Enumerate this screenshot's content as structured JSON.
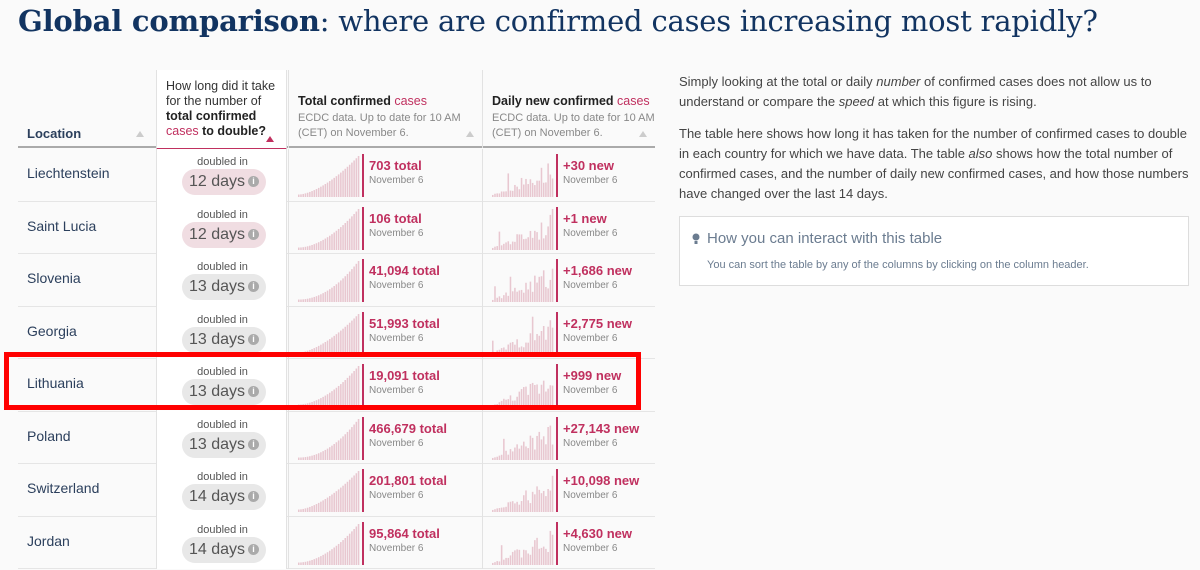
{
  "title": {
    "bold": "Global comparison",
    "rest": ": where are confirmed cases increasing most rapidly?"
  },
  "header": {
    "location": "Location",
    "doubling": {
      "part1": "How long did it take for the number of ",
      "bold": "total confirmed",
      "pink": "cases",
      "part2": " to double?"
    },
    "total": {
      "label": "Total confirmed ",
      "pink": "cases",
      "sub": "ECDC data. Up to date for 10 AM (CET) on November 6."
    },
    "daily": {
      "label": "Daily new confirmed ",
      "pink": "cases",
      "sub": "ECDC data. Up to date for 10 AM (CET) on November 6."
    }
  },
  "rows": [
    {
      "location": "Liechtenstein",
      "doubled_label": "doubled in",
      "days": "12 days",
      "hot": true,
      "total": "703 total",
      "total_date": "November 6",
      "new": "+30 new",
      "new_date": "November 6"
    },
    {
      "location": "Saint Lucia",
      "doubled_label": "doubled in",
      "days": "12 days",
      "hot": true,
      "total": "106 total",
      "total_date": "November 6",
      "new": "+1 new",
      "new_date": "November 6"
    },
    {
      "location": "Slovenia",
      "doubled_label": "doubled in",
      "days": "13 days",
      "hot": false,
      "total": "41,094 total",
      "total_date": "November 6",
      "new": "+1,686 new",
      "new_date": "November 6"
    },
    {
      "location": "Georgia",
      "doubled_label": "doubled in",
      "days": "13 days",
      "hot": false,
      "total": "51,993 total",
      "total_date": "November 6",
      "new": "+2,775 new",
      "new_date": "November 6"
    },
    {
      "location": "Lithuania",
      "doubled_label": "doubled in",
      "days": "13 days",
      "hot": false,
      "total": "19,091 total",
      "total_date": "November 6",
      "new": "+999 new",
      "new_date": "November 6"
    },
    {
      "location": "Poland",
      "doubled_label": "doubled in",
      "days": "13 days",
      "hot": false,
      "total": "466,679 total",
      "total_date": "November 6",
      "new": "+27,143 new",
      "new_date": "November 6"
    },
    {
      "location": "Switzerland",
      "doubled_label": "doubled in",
      "days": "14 days",
      "hot": false,
      "total": "201,801 total",
      "total_date": "November 6",
      "new": "+10,098 new",
      "new_date": "November 6"
    },
    {
      "location": "Jordan",
      "doubled_label": "doubled in",
      "days": "14 days",
      "hot": false,
      "total": "95,864 total",
      "total_date": "November 6",
      "new": "+4,630 new",
      "new_date": "November 6"
    }
  ],
  "info_icon": "i",
  "side": {
    "p1": {
      "a": "Simply looking at the total or daily ",
      "i": "number",
      "b": " of confirmed cases does not allow us to understand or compare the ",
      "i2": "speed",
      "c": " at which this figure is rising."
    },
    "p2": {
      "a": "The table here shows how long it has taken for the number of confirmed cases to double in each country for which we have data. The table ",
      "i": "also",
      "b": " shows how the total number of confirmed cases, and the number of daily new confirmed cases, and how those numbers have changed over the last 14 days."
    }
  },
  "interact": {
    "title": "How you can interact with this table",
    "text": "You can sort the table by any of the columns by clicking on the column header."
  },
  "colors": {
    "accent": "#c0305f",
    "title": "#123461",
    "bar": "#e8c7d0",
    "highlight": "#ff0000"
  }
}
